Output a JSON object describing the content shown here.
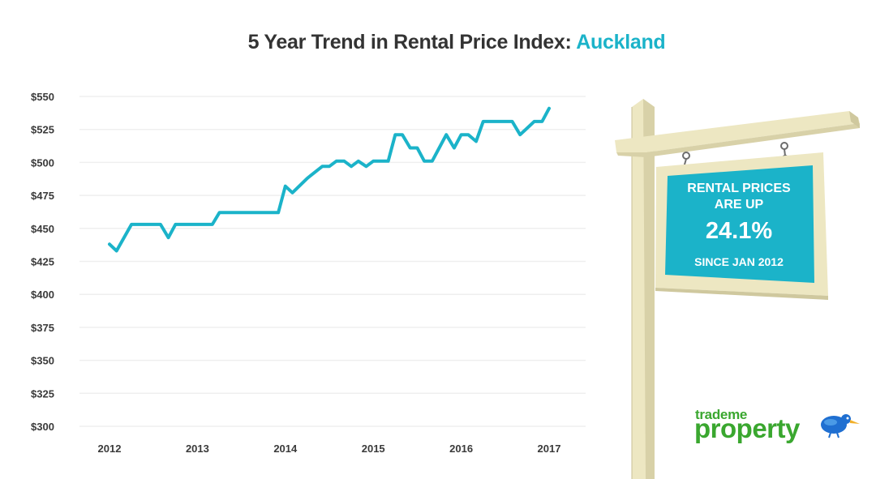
{
  "title": {
    "prefix": "5 Year Trend in Rental Price Index: ",
    "highlight": "Auckland"
  },
  "sign": {
    "line1": "RENTAL PRICES",
    "line2": "ARE UP",
    "value": "24.1%",
    "line3": "SINCE JAN 2012"
  },
  "logo": {
    "small": "trademe",
    "big": "property"
  },
  "colors": {
    "line": "#1bb3c9",
    "accent": "#1bb3c9",
    "post": "#ede7c2",
    "board": "#1bb3c9",
    "logo": "#3aa72f"
  },
  "chart_data": {
    "type": "line",
    "ylim": [
      300,
      550
    ],
    "yticks": [
      550,
      525,
      500,
      475,
      450,
      425,
      400,
      375,
      350,
      325,
      300
    ],
    "ytick_labels": [
      "$550",
      "$525",
      "$500",
      "$475",
      "$450",
      "$425",
      "$400",
      "$375",
      "$350",
      "$325",
      "$300"
    ],
    "xticks": [
      2012,
      2013,
      2014,
      2015,
      2016,
      2017
    ],
    "xtick_labels": [
      "2012",
      "2013",
      "2014",
      "2015",
      "2016",
      "2017"
    ],
    "grid": true,
    "series": [
      {
        "x": [
          2012.0,
          2012.08,
          2012.25,
          2012.33,
          2012.42,
          2012.58,
          2012.67,
          2012.75,
          2012.83,
          2013.0,
          2013.17,
          2013.25,
          2013.33,
          2013.5,
          2013.67,
          2013.83,
          2013.92,
          2014.0,
          2014.08,
          2014.25,
          2014.42,
          2014.5,
          2014.58,
          2014.67,
          2014.75,
          2014.83,
          2014.92,
          2015.0,
          2015.08,
          2015.17,
          2015.25,
          2015.33,
          2015.42,
          2015.5,
          2015.58,
          2015.67,
          2015.75,
          2015.83,
          2015.92,
          2016.0,
          2016.08,
          2016.17,
          2016.25,
          2016.33,
          2016.5,
          2016.58,
          2016.67,
          2016.75,
          2016.83,
          2016.92,
          2017.0
        ],
        "y": [
          438,
          433,
          453,
          453,
          453,
          453,
          443,
          453,
          453,
          453,
          453,
          462,
          462,
          462,
          462,
          462,
          462,
          482,
          477,
          488,
          497,
          497,
          501,
          501,
          497,
          501,
          497,
          501,
          501,
          501,
          521,
          521,
          511,
          511,
          501,
          501,
          511,
          521,
          511,
          521,
          521,
          516,
          531,
          531,
          531,
          531,
          521,
          526,
          531,
          531,
          541
        ]
      }
    ]
  }
}
